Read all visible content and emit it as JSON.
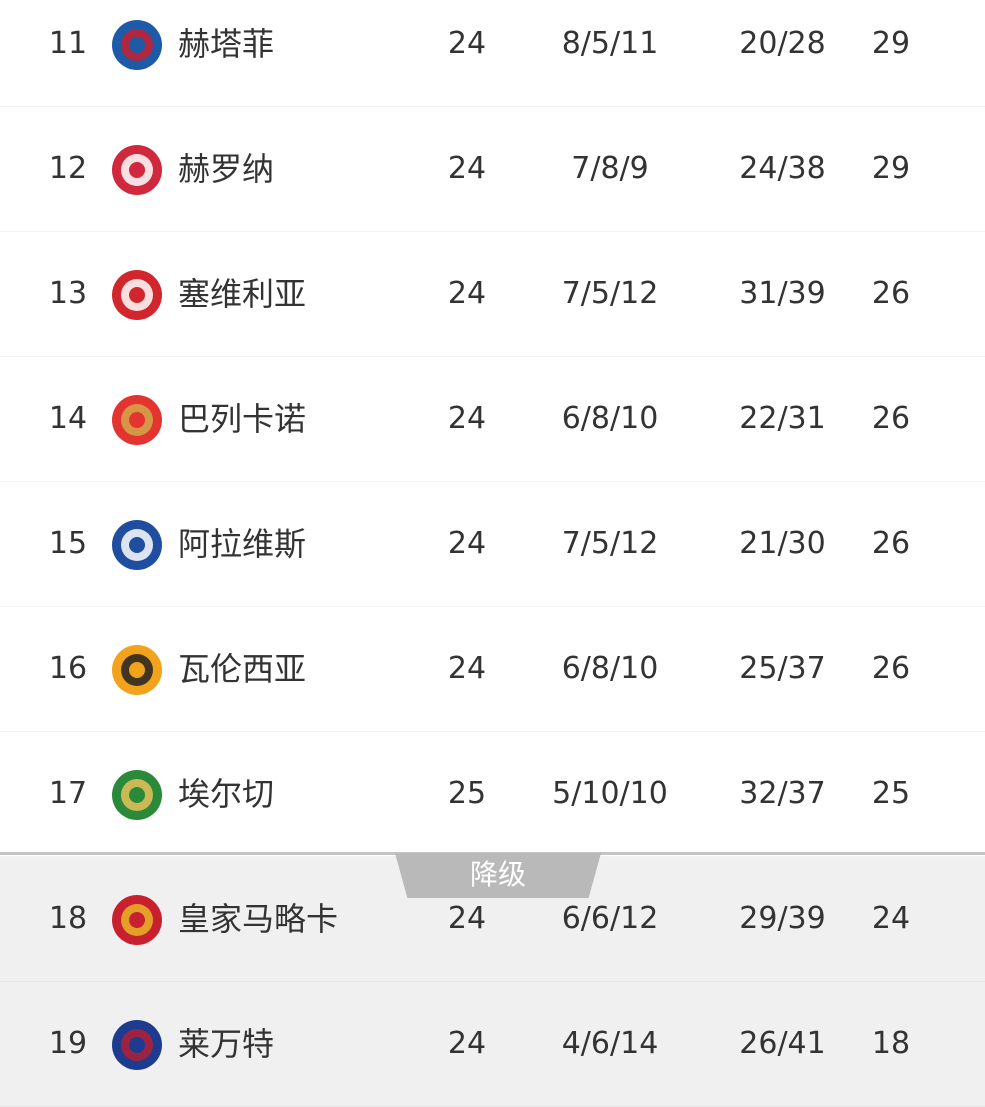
{
  "relegation_label": "降级",
  "rows": [
    {
      "rank": "11",
      "team": "赫塔菲",
      "played": "24",
      "wdl": "8/5/11",
      "goals": "20/28",
      "pts": "29",
      "logo_color": "#1d5aa8",
      "logo_accent": "#c8202f",
      "relegation": false
    },
    {
      "rank": "12",
      "team": "赫罗纳",
      "played": "24",
      "wdl": "7/8/9",
      "goals": "24/38",
      "pts": "29",
      "logo_color": "#d0283c",
      "logo_accent": "#ffffff",
      "relegation": false
    },
    {
      "rank": "13",
      "team": "塞维利亚",
      "played": "24",
      "wdl": "7/5/12",
      "goals": "31/39",
      "pts": "26",
      "logo_color": "#d2262d",
      "logo_accent": "#ffffff",
      "relegation": false
    },
    {
      "rank": "14",
      "team": "巴列卡诺",
      "played": "24",
      "wdl": "6/8/10",
      "goals": "22/31",
      "pts": "26",
      "logo_color": "#e3342f",
      "logo_accent": "#d4a84a",
      "relegation": false
    },
    {
      "rank": "15",
      "team": "阿拉维斯",
      "played": "24",
      "wdl": "7/5/12",
      "goals": "21/30",
      "pts": "26",
      "logo_color": "#1f4da0",
      "logo_accent": "#ffffff",
      "relegation": false
    },
    {
      "rank": "16",
      "team": "瓦伦西亚",
      "played": "24",
      "wdl": "6/8/10",
      "goals": "25/37",
      "pts": "26",
      "logo_color": "#f2a31b",
      "logo_accent": "#222222",
      "relegation": false
    },
    {
      "rank": "17",
      "team": "埃尔切",
      "played": "25",
      "wdl": "5/10/10",
      "goals": "32/37",
      "pts": "25",
      "logo_color": "#2a8a3a",
      "logo_accent": "#e7c15a",
      "relegation": false
    },
    {
      "rank": "18",
      "team": "皇家马略卡",
      "played": "24",
      "wdl": "6/6/12",
      "goals": "29/39",
      "pts": "24",
      "logo_color": "#c8202f",
      "logo_accent": "#e8b626",
      "relegation": true
    },
    {
      "rank": "19",
      "team": "莱万特",
      "played": "24",
      "wdl": "4/6/14",
      "goals": "26/41",
      "pts": "18",
      "logo_color": "#1d3c8f",
      "logo_accent": "#b41e36",
      "relegation": true
    }
  ]
}
